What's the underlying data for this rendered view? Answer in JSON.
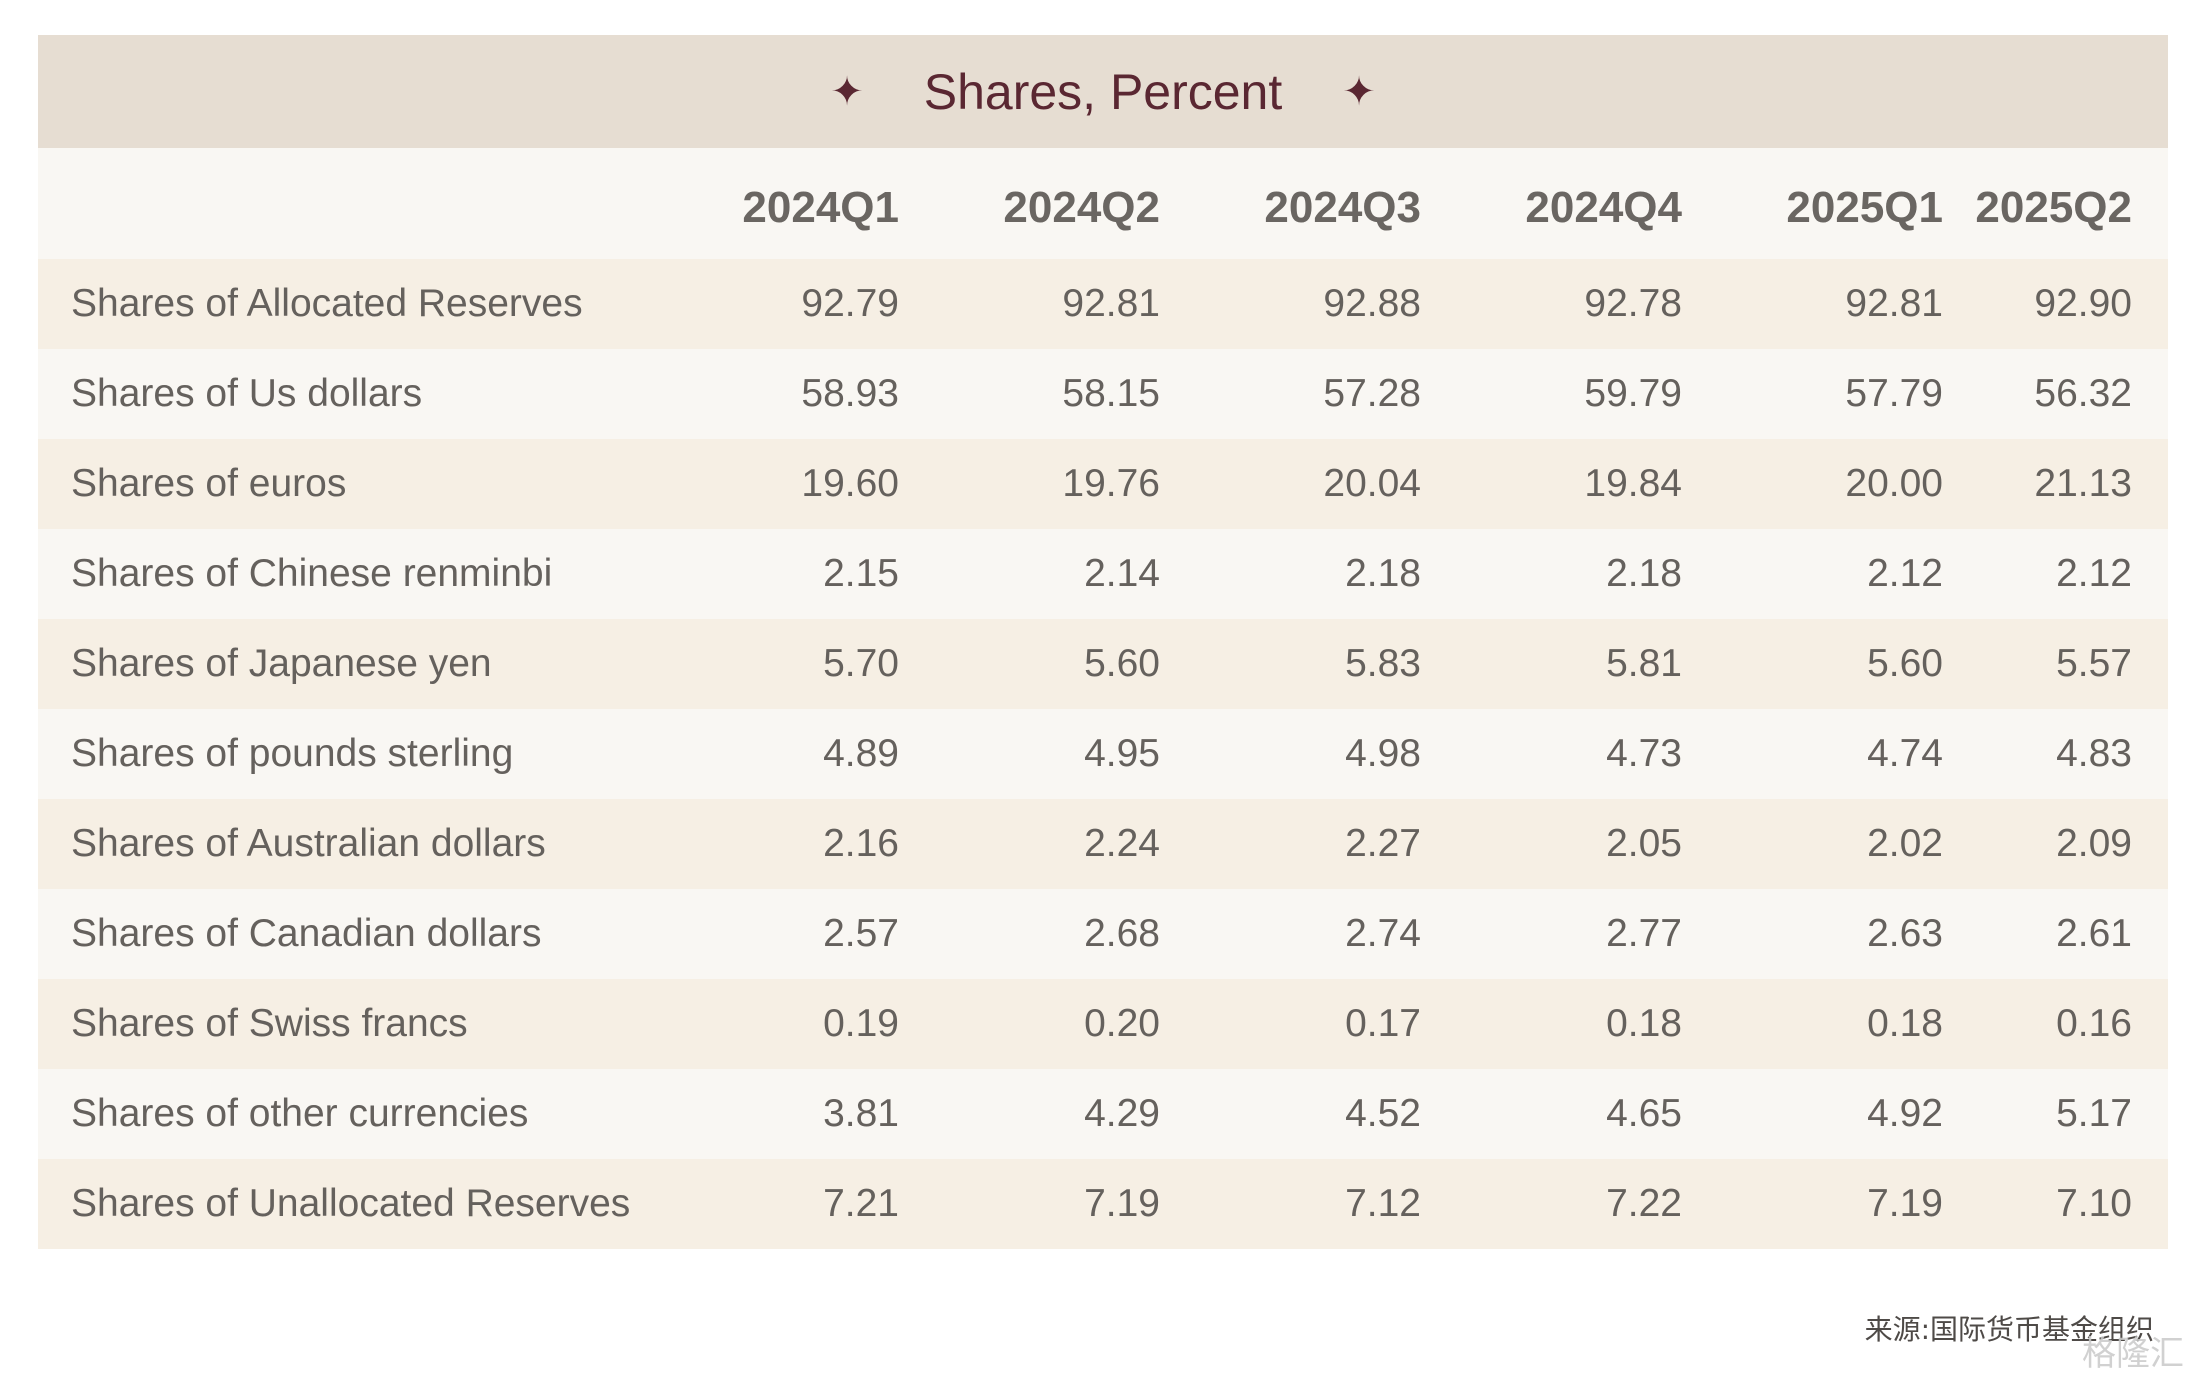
{
  "chart_data": {
    "type": "table",
    "title": "Shares, Percent",
    "columns": [
      "2024Q1",
      "2024Q2",
      "2024Q3",
      "2024Q4",
      "2025Q1",
      "2025Q2"
    ],
    "rows": [
      {
        "label": "Shares of Allocated Reserves",
        "values": [
          "92.79",
          "92.81",
          "92.88",
          "92.78",
          "92.81",
          "92.90"
        ]
      },
      {
        "label": "Shares of Us dollars",
        "values": [
          "58.93",
          "58.15",
          "57.28",
          "59.79",
          "57.79",
          "56.32"
        ]
      },
      {
        "label": "Shares of euros",
        "values": [
          "19.60",
          "19.76",
          "20.04",
          "19.84",
          "20.00",
          "21.13"
        ]
      },
      {
        "label": "Shares of Chinese renminbi",
        "values": [
          "2.15",
          "2.14",
          "2.18",
          "2.18",
          "2.12",
          "2.12"
        ]
      },
      {
        "label": "Shares of Japanese yen",
        "values": [
          "5.70",
          "5.60",
          "5.83",
          "5.81",
          "5.60",
          "5.57"
        ]
      },
      {
        "label": "Shares of pounds sterling",
        "values": [
          "4.89",
          "4.95",
          "4.98",
          "4.73",
          "4.74",
          "4.83"
        ]
      },
      {
        "label": "Shares of Australian dollars",
        "values": [
          "2.16",
          "2.24",
          "2.27",
          "2.05",
          "2.02",
          "2.09"
        ]
      },
      {
        "label": "Shares of Canadian dollars",
        "values": [
          "2.57",
          "2.68",
          "2.74",
          "2.77",
          "2.63",
          "2.61"
        ]
      },
      {
        "label": "Shares of Swiss francs",
        "values": [
          "0.19",
          "0.20",
          "0.17",
          "0.18",
          "0.18",
          "0.16"
        ]
      },
      {
        "label": "Shares of other currencies",
        "values": [
          "3.81",
          "4.29",
          "4.52",
          "4.65",
          "4.92",
          "5.17"
        ]
      },
      {
        "label": "Shares of Unallocated Reserves",
        "values": [
          "7.21",
          "7.19",
          "7.12",
          "7.22",
          "7.19",
          "7.10"
        ]
      }
    ]
  },
  "decor": {
    "star_icon": "four-point-star-icon",
    "title_color": "#5a2732",
    "header_bg": "#e6ddd2",
    "row_odd_bg": "#f6efe4",
    "row_even_bg": "#f9f7f3"
  },
  "source_note": "来源:国际货币基金组织",
  "watermark_text": "格隆汇"
}
